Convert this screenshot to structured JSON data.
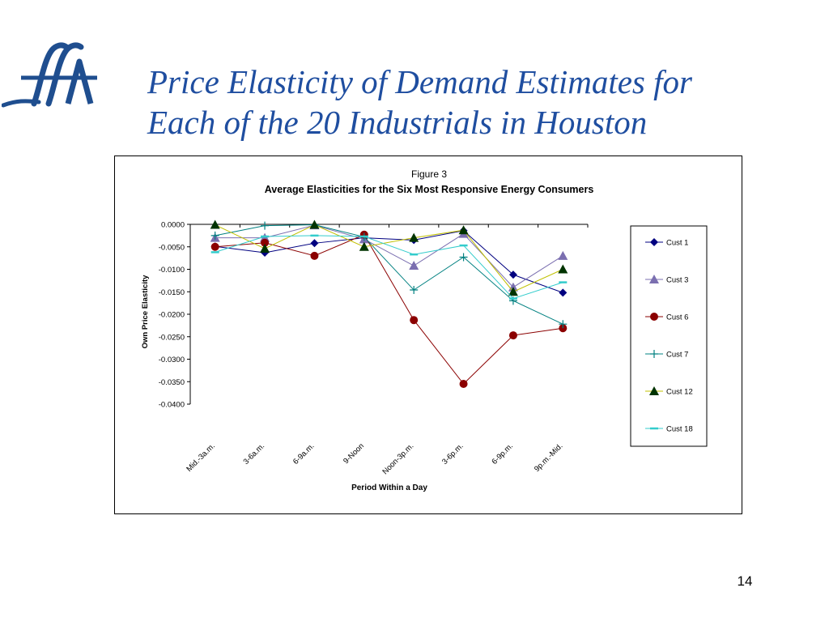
{
  "slide": {
    "title_line1": "Price Elasticity of Demand Estimates for",
    "title_line2": "Each of the 20 Industrials in Houston",
    "page_number": "14",
    "logo_text": "fA",
    "title_color": "#1f4ea0"
  },
  "chart_data": {
    "type": "line",
    "figure_label": "Figure 3",
    "title": "Average Elasticities for the Six Most Responsive Energy Consumers",
    "xlabel": "Period Within a Day",
    "ylabel": "Own Price Elasticity",
    "ylim": [
      -0.04,
      0
    ],
    "yticks": [
      "0.0000",
      "-0.0050",
      "-0.0100",
      "-0.0150",
      "-0.0200",
      "-0.0250",
      "-0.0300",
      "-0.0350",
      "-0.0400"
    ],
    "categories": [
      "Mid.-3a.m.",
      "3-6a.m.",
      "6-9a.m.",
      "9-Noon",
      "Noon-3p.m.",
      "3-6p.m.",
      "6-9p.m.",
      "9p.m.-Mid."
    ],
    "legend_position": "right",
    "grid": false,
    "series": [
      {
        "name": "Cust 1",
        "color": "#000080",
        "marker": "diamond",
        "values": [
          -0.0049,
          -0.0063,
          -0.0042,
          -0.003,
          -0.0035,
          -0.0014,
          -0.0112,
          -0.0152
        ]
      },
      {
        "name": "Cust 3",
        "color": "#7b6fb0",
        "marker": "triangle",
        "values": [
          -0.003,
          -0.003,
          -0.0002,
          -0.0033,
          -0.0092,
          -0.0021,
          -0.014,
          -0.007
        ]
      },
      {
        "name": "Cust 6",
        "color": "#8b0000",
        "marker": "circle",
        "values": [
          -0.005,
          -0.0041,
          -0.007,
          -0.0023,
          -0.0213,
          -0.0355,
          -0.0247,
          -0.0231
        ]
      },
      {
        "name": "Cust 7",
        "color": "#008080",
        "marker": "plus",
        "values": [
          -0.0025,
          -0.0003,
          -0.0001,
          -0.0028,
          -0.0146,
          -0.0073,
          -0.017,
          -0.0222
        ]
      },
      {
        "name": "Cust 12",
        "color": "#c0c000",
        "marker": "filled-triangle",
        "marker_color": "#003300",
        "values": [
          -0.0001,
          -0.0054,
          -0.0001,
          -0.005,
          -0.003,
          -0.0013,
          -0.015,
          -0.01
        ]
      },
      {
        "name": "Cust 18",
        "color": "#33cccc",
        "marker": "dash",
        "values": [
          -0.0062,
          -0.0027,
          -0.0025,
          -0.0027,
          -0.0067,
          -0.0047,
          -0.0165,
          -0.0129
        ]
      }
    ]
  }
}
